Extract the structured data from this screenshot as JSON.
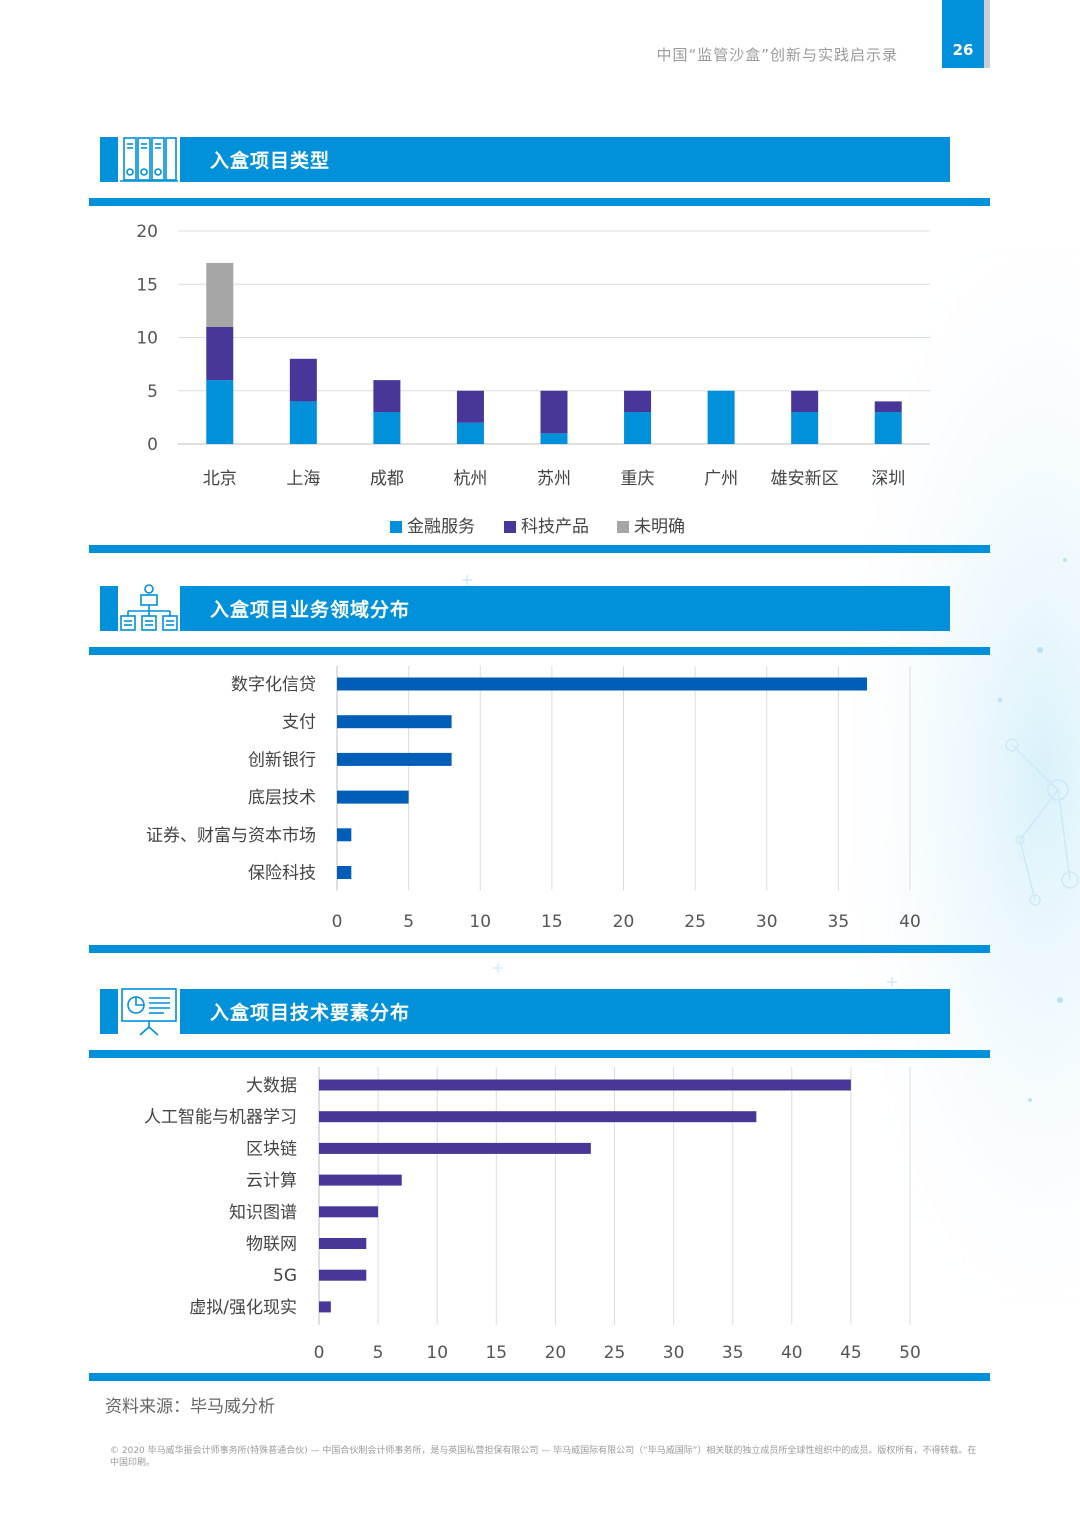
{
  "header": {
    "doc_title": "中国“监管沙盒”创新与实践启示录",
    "page_number": "26"
  },
  "sections": [
    {
      "title": "入盒项目类型",
      "icon": "binders-icon"
    },
    {
      "title": "入盒项目业务领域分布",
      "icon": "org-chart-icon"
    },
    {
      "title": "入盒项目技术要素分布",
      "icon": "presentation-board-icon"
    }
  ],
  "source_note": "资料来源：毕马威分析",
  "copyright": "© 2020 毕马威华振会计师事务所(特殊普通合伙) — 中国合伙制会计师事务所，是与英国私营担保有限公司 — 毕马威国际有限公司（“毕马威国际”）相关联的独立成员所全球性组织中的成员。版权所有，不得转载。在中国印刷。",
  "colors": {
    "brand_blue": "#0091da",
    "finance_blue": "#0091da",
    "tech_purple": "#483698",
    "unclear_gray": "#a6a6a6",
    "domain_bar": "#005eb8",
    "tech_bar": "#483698"
  },
  "chart_data": [
    {
      "type": "bar",
      "stacked": true,
      "categories": [
        "北京",
        "上海",
        "成都",
        "杭州",
        "苏州",
        "重庆",
        "广州",
        "雄安新区",
        "深圳"
      ],
      "series": [
        {
          "name": "金融服务",
          "values": [
            6,
            4,
            3,
            2,
            1,
            3,
            5,
            3,
            3
          ]
        },
        {
          "name": "科技产品",
          "values": [
            5,
            4,
            3,
            3,
            4,
            2,
            0,
            2,
            1
          ]
        },
        {
          "name": "未明确",
          "values": [
            6,
            0,
            0,
            0,
            0,
            0,
            0,
            0,
            0
          ]
        }
      ],
      "ylim": [
        0,
        20
      ],
      "yticks": [
        0,
        5,
        10,
        15,
        20
      ],
      "grid": true,
      "legend": "bottom"
    },
    {
      "type": "bar",
      "orientation": "horizontal",
      "categories": [
        "数字化信贷",
        "支付",
        "创新银行",
        "底层技术",
        "证券、财富与资本市场",
        "保险科技"
      ],
      "values": [
        37,
        8,
        8,
        5,
        1,
        1
      ],
      "xlim": [
        0,
        40
      ],
      "xticks": [
        0,
        5,
        10,
        15,
        20,
        25,
        30,
        35,
        40
      ],
      "grid": true
    },
    {
      "type": "bar",
      "orientation": "horizontal",
      "categories": [
        "大数据",
        "人工智能与机器学习",
        "区块链",
        "云计算",
        "知识图谱",
        "物联网",
        "5G",
        "虚拟/强化现实"
      ],
      "values": [
        45,
        37,
        23,
        7,
        5,
        4,
        4,
        1
      ],
      "xlim": [
        0,
        50
      ],
      "xticks": [
        0,
        5,
        10,
        15,
        20,
        25,
        30,
        35,
        40,
        45,
        50
      ],
      "grid": true
    }
  ]
}
